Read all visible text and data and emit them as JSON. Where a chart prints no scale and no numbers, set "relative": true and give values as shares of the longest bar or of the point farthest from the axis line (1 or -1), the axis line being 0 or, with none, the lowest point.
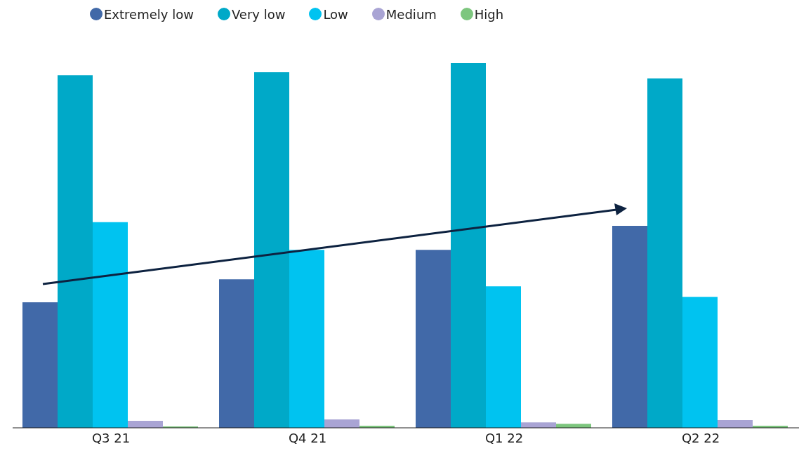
{
  "chart_data": {
    "type": "bar",
    "relative": true,
    "categories": [
      "Q3 21",
      "Q4 21",
      "Q1 22",
      "Q2 22"
    ],
    "series": [
      {
        "name": "Extremely low",
        "color": "#4169a8",
        "values": [
          0.344,
          0.407,
          0.488,
          0.554
        ]
      },
      {
        "name": "Very low",
        "color": "#00a9c8",
        "values": [
          0.967,
          0.975,
          1,
          0.958
        ]
      },
      {
        "name": "Low",
        "color": "#00c3f0",
        "values": [
          0.564,
          0.488,
          0.388,
          0.359
        ]
      },
      {
        "name": "Medium",
        "color": "#a9a4d4",
        "values": [
          0.019,
          0.023,
          0.015,
          0.021
        ]
      },
      {
        "name": "High",
        "color": "#7dc67e",
        "values": [
          0.004,
          0.006,
          0.011,
          0.006
        ]
      }
    ],
    "legend": "top",
    "grid": false
  }
}
